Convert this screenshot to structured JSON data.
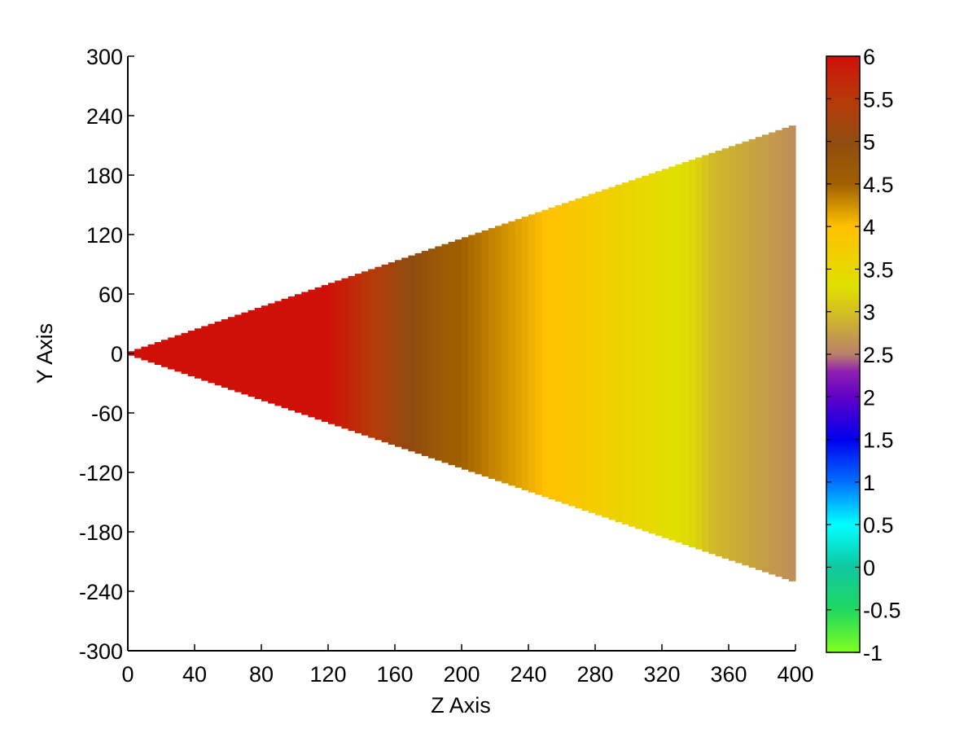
{
  "chart_data": {
    "type": "heatmap",
    "title": "",
    "xlabel": "Z Axis",
    "ylabel": "Y Axis",
    "xlim": [
      0,
      400
    ],
    "ylim": [
      -300,
      300
    ],
    "xticks": [
      "0",
      "40",
      "80",
      "120",
      "160",
      "200",
      "240",
      "280",
      "320",
      "360",
      "400"
    ],
    "yticks": [
      "300",
      "240",
      "180",
      "120",
      "60",
      "0",
      "-60",
      "-120",
      "-180",
      "-240",
      "-300"
    ],
    "grid": false,
    "region": {
      "shape": "wedge",
      "apex": [
        0,
        0
      ],
      "end_z": 400,
      "end_half_width_y": 230,
      "z_step": 4
    },
    "value_profile": {
      "z": [
        0,
        120,
        190,
        255,
        340,
        350,
        400
      ],
      "value": [
        6.0,
        6.0,
        4.6,
        3.95,
        3.2,
        2.95,
        2.6
      ]
    },
    "colorbar": {
      "min": -1,
      "max": 6,
      "ticks": [
        "6",
        "5.5",
        "5",
        "4.5",
        "4",
        "3.5",
        "3",
        "2.5",
        "2",
        "1.5",
        "1",
        "0.5",
        "0",
        "-0.5",
        "-1"
      ],
      "stops": [
        {
          "value": -1.0,
          "color": "#7fff1f"
        },
        {
          "value": -0.5,
          "color": "#1fd860"
        },
        {
          "value": 0.0,
          "color": "#10c8a0"
        },
        {
          "value": 0.5,
          "color": "#00ffff"
        },
        {
          "value": 1.0,
          "color": "#0070ff"
        },
        {
          "value": 1.5,
          "color": "#0000ee"
        },
        {
          "value": 2.0,
          "color": "#6000c8"
        },
        {
          "value": 2.3,
          "color": "#9020b0"
        },
        {
          "value": 2.5,
          "color": "#b8806a"
        },
        {
          "value": 3.0,
          "color": "#d4c020"
        },
        {
          "value": 3.3,
          "color": "#e0e000"
        },
        {
          "value": 4.0,
          "color": "#ffc000"
        },
        {
          "value": 4.5,
          "color": "#a06000"
        },
        {
          "value": 5.0,
          "color": "#904c10"
        },
        {
          "value": 5.5,
          "color": "#b83808"
        },
        {
          "value": 6.0,
          "color": "#d01008"
        }
      ]
    }
  }
}
